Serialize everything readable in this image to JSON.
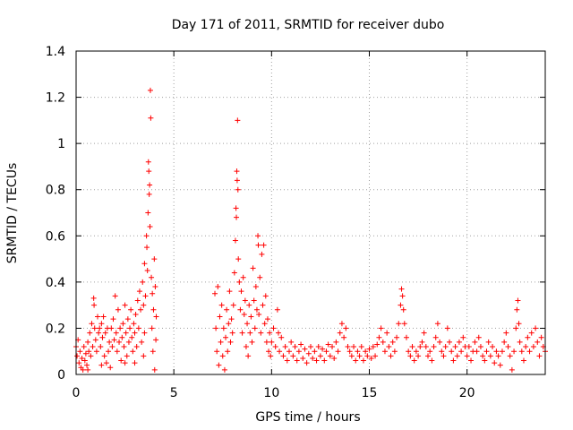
{
  "chart_data": {
    "type": "scatter",
    "title": "Day 171 of 2011, SRMTID for receiver dubo",
    "xlabel": "GPS time / hours",
    "ylabel": "SRMTID / TECUs",
    "xlim": [
      0,
      24
    ],
    "ylim": [
      0,
      1.4
    ],
    "xticks": [
      0,
      5,
      10,
      15,
      20
    ],
    "yticks": [
      0,
      0.2,
      0.4,
      0.6,
      0.8,
      1,
      1.2,
      1.4
    ],
    "xtick_labels": [
      "0",
      "5",
      "10",
      "15",
      "20"
    ],
    "ytick_labels": [
      "0",
      "0.2",
      "0.4",
      "0.6",
      "0.8",
      "1",
      "1.2",
      "1.4"
    ],
    "grid": true,
    "marker": "+",
    "color": "#ff0000",
    "series": [
      {
        "name": "SRMTID",
        "points": [
          [
            0.0,
            0.12
          ],
          [
            0.05,
            0.08
          ],
          [
            0.1,
            0.15
          ],
          [
            0.15,
            0.05
          ],
          [
            0.2,
            0.1
          ],
          [
            0.25,
            0.03
          ],
          [
            0.3,
            0.07
          ],
          [
            0.35,
            0.02
          ],
          [
            0.4,
            0.12
          ],
          [
            0.45,
            0.06
          ],
          [
            0.5,
            0.09
          ],
          [
            0.55,
            0.04
          ],
          [
            0.6,
            0.14
          ],
          [
            0.65,
            0.1
          ],
          [
            0.7,
            0.18
          ],
          [
            0.75,
            0.08
          ],
          [
            0.8,
            0.22
          ],
          [
            0.85,
            0.12
          ],
          [
            0.9,
            0.33
          ],
          [
            0.92,
            0.3
          ],
          [
            0.95,
            0.2
          ],
          [
            1.0,
            0.15
          ],
          [
            1.05,
            0.1
          ],
          [
            1.1,
            0.25
          ],
          [
            1.15,
            0.18
          ],
          [
            1.2,
            0.2
          ],
          [
            1.25,
            0.12
          ],
          [
            1.3,
            0.22
          ],
          [
            1.35,
            0.16
          ],
          [
            1.4,
            0.25
          ],
          [
            1.45,
            0.08
          ],
          [
            1.5,
            0.18
          ],
          [
            1.55,
            0.05
          ],
          [
            1.6,
            0.2
          ],
          [
            1.65,
            0.1
          ],
          [
            1.7,
            0.14
          ],
          [
            1.75,
            0.03
          ],
          [
            1.8,
            0.2
          ],
          [
            1.85,
            0.12
          ],
          [
            1.9,
            0.24
          ],
          [
            1.95,
            0.15
          ],
          [
            2.0,
            0.34
          ],
          [
            2.05,
            0.18
          ],
          [
            2.1,
            0.1
          ],
          [
            2.15,
            0.28
          ],
          [
            2.2,
            0.14
          ],
          [
            2.25,
            0.2
          ],
          [
            2.3,
            0.06
          ],
          [
            2.35,
            0.16
          ],
          [
            2.4,
            0.22
          ],
          [
            2.45,
            0.12
          ],
          [
            2.5,
            0.3
          ],
          [
            2.55,
            0.18
          ],
          [
            2.6,
            0.08
          ],
          [
            2.65,
            0.24
          ],
          [
            2.7,
            0.14
          ],
          [
            2.75,
            0.2
          ],
          [
            2.8,
            0.28
          ],
          [
            2.85,
            0.16
          ],
          [
            2.9,
            0.1
          ],
          [
            2.95,
            0.22
          ],
          [
            3.0,
            0.18
          ],
          [
            3.05,
            0.26
          ],
          [
            3.1,
            0.12
          ],
          [
            3.15,
            0.32
          ],
          [
            3.2,
            0.2
          ],
          [
            3.25,
            0.36
          ],
          [
            3.3,
            0.28
          ],
          [
            3.35,
            0.14
          ],
          [
            3.4,
            0.4
          ],
          [
            3.45,
            0.3
          ],
          [
            3.5,
            0.48
          ],
          [
            3.55,
            0.34
          ],
          [
            3.6,
            0.6
          ],
          [
            3.62,
            0.55
          ],
          [
            3.65,
            0.45
          ],
          [
            3.68,
            0.7
          ],
          [
            3.7,
            0.92
          ],
          [
            3.72,
            0.88
          ],
          [
            3.74,
            0.78
          ],
          [
            3.76,
            0.82
          ],
          [
            3.78,
            0.64
          ],
          [
            3.8,
            1.23
          ],
          [
            3.82,
            1.11
          ],
          [
            3.85,
            0.42
          ],
          [
            3.88,
            0.2
          ],
          [
            3.9,
            0.35
          ],
          [
            3.93,
            0.1
          ],
          [
            3.96,
            0.28
          ],
          [
            4.0,
            0.5
          ],
          [
            4.02,
            0.02
          ],
          [
            4.05,
            0.38
          ],
          [
            4.08,
            0.15
          ],
          [
            4.1,
            0.25
          ],
          [
            3.5,
            0.18
          ],
          [
            3.45,
            0.08
          ],
          [
            3.0,
            0.05
          ],
          [
            2.5,
            0.05
          ],
          [
            1.3,
            0.04
          ],
          [
            0.6,
            0.02
          ],
          [
            7.1,
            0.35
          ],
          [
            7.15,
            0.2
          ],
          [
            7.2,
            0.1
          ],
          [
            7.25,
            0.38
          ],
          [
            7.3,
            0.04
          ],
          [
            7.35,
            0.25
          ],
          [
            7.4,
            0.14
          ],
          [
            7.45,
            0.3
          ],
          [
            7.5,
            0.08
          ],
          [
            7.55,
            0.2
          ],
          [
            7.6,
            0.02
          ],
          [
            7.65,
            0.16
          ],
          [
            7.7,
            0.28
          ],
          [
            7.75,
            0.1
          ],
          [
            7.8,
            0.22
          ],
          [
            7.85,
            0.36
          ],
          [
            7.9,
            0.14
          ],
          [
            7.95,
            0.24
          ],
          [
            8.0,
            0.18
          ],
          [
            8.05,
            0.3
          ],
          [
            8.1,
            0.44
          ],
          [
            8.15,
            0.58
          ],
          [
            8.18,
            0.72
          ],
          [
            8.2,
            0.68
          ],
          [
            8.22,
            0.88
          ],
          [
            8.24,
            0.84
          ],
          [
            8.26,
            1.1
          ],
          [
            8.28,
            0.8
          ],
          [
            8.3,
            0.5
          ],
          [
            8.35,
            0.4
          ],
          [
            8.4,
            0.28
          ],
          [
            8.45,
            0.36
          ],
          [
            8.5,
            0.18
          ],
          [
            8.55,
            0.42
          ],
          [
            8.6,
            0.26
          ],
          [
            8.65,
            0.32
          ],
          [
            8.7,
            0.12
          ],
          [
            8.75,
            0.22
          ],
          [
            8.8,
            0.08
          ],
          [
            8.85,
            0.3
          ],
          [
            8.9,
            0.18
          ],
          [
            8.95,
            0.25
          ],
          [
            9.0,
            0.14
          ],
          [
            9.05,
            0.46
          ],
          [
            9.1,
            0.32
          ],
          [
            9.15,
            0.2
          ],
          [
            9.2,
            0.38
          ],
          [
            9.25,
            0.28
          ],
          [
            9.3,
            0.6
          ],
          [
            9.32,
            0.56
          ],
          [
            9.35,
            0.26
          ],
          [
            9.4,
            0.42
          ],
          [
            9.45,
            0.18
          ],
          [
            9.5,
            0.52
          ],
          [
            9.55,
            0.3
          ],
          [
            9.6,
            0.56
          ],
          [
            9.65,
            0.22
          ],
          [
            9.7,
            0.34
          ],
          [
            9.75,
            0.14
          ],
          [
            9.8,
            0.24
          ],
          [
            9.85,
            0.1
          ],
          [
            9.9,
            0.18
          ],
          [
            9.95,
            0.08
          ],
          [
            10.0,
            0.14
          ],
          [
            10.1,
            0.2
          ],
          [
            10.2,
            0.12
          ],
          [
            10.3,
            0.28
          ],
          [
            10.35,
            0.18
          ],
          [
            10.4,
            0.1
          ],
          [
            10.5,
            0.16
          ],
          [
            10.6,
            0.08
          ],
          [
            10.7,
            0.12
          ],
          [
            10.8,
            0.06
          ],
          [
            10.9,
            0.1
          ],
          [
            11.0,
            0.14
          ],
          [
            11.1,
            0.08
          ],
          [
            11.2,
            0.12
          ],
          [
            11.3,
            0.06
          ],
          [
            11.4,
            0.1
          ],
          [
            11.5,
            0.13
          ],
          [
            11.6,
            0.07
          ],
          [
            11.7,
            0.11
          ],
          [
            11.8,
            0.05
          ],
          [
            11.9,
            0.09
          ],
          [
            12.0,
            0.12
          ],
          [
            12.1,
            0.07
          ],
          [
            12.2,
            0.1
          ],
          [
            12.3,
            0.06
          ],
          [
            12.4,
            0.12
          ],
          [
            12.5,
            0.08
          ],
          [
            12.6,
            0.11
          ],
          [
            12.7,
            0.06
          ],
          [
            12.8,
            0.1
          ],
          [
            12.9,
            0.13
          ],
          [
            13.0,
            0.08
          ],
          [
            13.1,
            0.12
          ],
          [
            13.2,
            0.07
          ],
          [
            13.3,
            0.14
          ],
          [
            13.4,
            0.1
          ],
          [
            13.5,
            0.18
          ],
          [
            13.6,
            0.22
          ],
          [
            13.7,
            0.16
          ],
          [
            13.8,
            0.2
          ],
          [
            13.9,
            0.12
          ],
          [
            14.0,
            0.1
          ],
          [
            14.1,
            0.08
          ],
          [
            14.2,
            0.12
          ],
          [
            14.3,
            0.06
          ],
          [
            14.4,
            0.1
          ],
          [
            14.5,
            0.08
          ],
          [
            14.6,
            0.12
          ],
          [
            14.7,
            0.06
          ],
          [
            14.8,
            0.1
          ],
          [
            14.9,
            0.08
          ],
          [
            15.0,
            0.11
          ],
          [
            15.1,
            0.07
          ],
          [
            15.2,
            0.12
          ],
          [
            15.3,
            0.08
          ],
          [
            15.4,
            0.13
          ],
          [
            15.5,
            0.16
          ],
          [
            15.6,
            0.2
          ],
          [
            15.7,
            0.14
          ],
          [
            15.8,
            0.1
          ],
          [
            15.9,
            0.18
          ],
          [
            16.0,
            0.12
          ],
          [
            16.1,
            0.08
          ],
          [
            16.2,
            0.14
          ],
          [
            16.3,
            0.1
          ],
          [
            16.4,
            0.16
          ],
          [
            16.5,
            0.22
          ],
          [
            16.6,
            0.3
          ],
          [
            16.65,
            0.37
          ],
          [
            16.7,
            0.34
          ],
          [
            16.75,
            0.28
          ],
          [
            16.8,
            0.22
          ],
          [
            16.9,
            0.16
          ],
          [
            17.0,
            0.1
          ],
          [
            17.1,
            0.08
          ],
          [
            17.2,
            0.12
          ],
          [
            17.3,
            0.06
          ],
          [
            17.4,
            0.1
          ],
          [
            17.5,
            0.08
          ],
          [
            17.6,
            0.12
          ],
          [
            17.7,
            0.14
          ],
          [
            17.8,
            0.18
          ],
          [
            17.9,
            0.12
          ],
          [
            18.0,
            0.08
          ],
          [
            18.1,
            0.1
          ],
          [
            18.2,
            0.06
          ],
          [
            18.3,
            0.12
          ],
          [
            18.4,
            0.16
          ],
          [
            18.5,
            0.22
          ],
          [
            18.6,
            0.14
          ],
          [
            18.7,
            0.1
          ],
          [
            18.8,
            0.08
          ],
          [
            18.9,
            0.12
          ],
          [
            19.0,
            0.2
          ],
          [
            19.1,
            0.14
          ],
          [
            19.2,
            0.1
          ],
          [
            19.3,
            0.06
          ],
          [
            19.4,
            0.12
          ],
          [
            19.5,
            0.08
          ],
          [
            19.6,
            0.14
          ],
          [
            19.7,
            0.1
          ],
          [
            19.8,
            0.16
          ],
          [
            19.9,
            0.12
          ],
          [
            20.0,
            0.08
          ],
          [
            20.1,
            0.12
          ],
          [
            20.2,
            0.06
          ],
          [
            20.3,
            0.1
          ],
          [
            20.4,
            0.14
          ],
          [
            20.5,
            0.1
          ],
          [
            20.6,
            0.16
          ],
          [
            20.7,
            0.12
          ],
          [
            20.8,
            0.08
          ],
          [
            20.9,
            0.06
          ],
          [
            21.0,
            0.1
          ],
          [
            21.1,
            0.14
          ],
          [
            21.2,
            0.08
          ],
          [
            21.3,
            0.12
          ],
          [
            21.4,
            0.05
          ],
          [
            21.5,
            0.1
          ],
          [
            21.6,
            0.08
          ],
          [
            21.7,
            0.04
          ],
          [
            21.8,
            0.1
          ],
          [
            21.9,
            0.14
          ],
          [
            22.0,
            0.18
          ],
          [
            22.1,
            0.12
          ],
          [
            22.2,
            0.08
          ],
          [
            22.3,
            0.02
          ],
          [
            22.4,
            0.1
          ],
          [
            22.5,
            0.2
          ],
          [
            22.55,
            0.28
          ],
          [
            22.6,
            0.32
          ],
          [
            22.65,
            0.22
          ],
          [
            22.7,
            0.14
          ],
          [
            22.8,
            0.1
          ],
          [
            22.9,
            0.06
          ],
          [
            23.0,
            0.12
          ],
          [
            23.1,
            0.16
          ],
          [
            23.2,
            0.1
          ],
          [
            23.3,
            0.18
          ],
          [
            23.4,
            0.12
          ],
          [
            23.5,
            0.2
          ],
          [
            23.6,
            0.14
          ],
          [
            23.7,
            0.08
          ],
          [
            23.8,
            0.16
          ],
          [
            23.9,
            0.12
          ],
          [
            24.0,
            0.1
          ]
        ]
      }
    ]
  }
}
